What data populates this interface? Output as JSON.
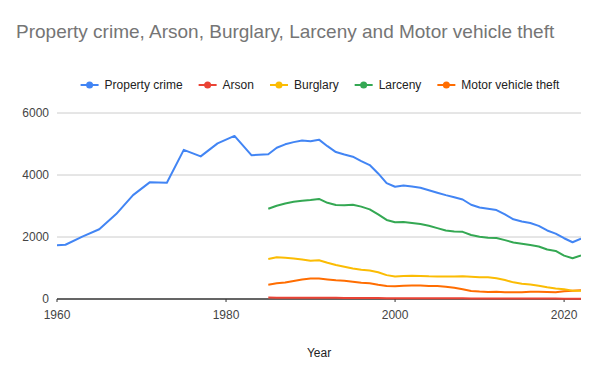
{
  "chart_data": {
    "type": "line",
    "title": "Property crime, Arson, Burglary, Larceny and Motor vehicle theft",
    "x_label": "Year",
    "x": [
      1960,
      1961,
      1963,
      1965,
      1967,
      1969,
      1971,
      1973,
      1975,
      1977,
      1979,
      1981,
      1983,
      1985,
      1986,
      1987,
      1988,
      1989,
      1990,
      1991,
      1992,
      1993,
      1994,
      1995,
      1996,
      1997,
      1998,
      1999,
      2000,
      2001,
      2002,
      2003,
      2004,
      2005,
      2006,
      2007,
      2008,
      2009,
      2010,
      2011,
      2012,
      2013,
      2014,
      2015,
      2016,
      2017,
      2018,
      2019,
      2020,
      2021,
      2022
    ],
    "series": [
      {
        "name": "Property crime",
        "color": "#4285f4",
        "values": [
          1730,
          1750,
          2010,
          2250,
          2740,
          3350,
          3770,
          3750,
          4810,
          4600,
          5020,
          5260,
          4640,
          4670,
          4880,
          4990,
          5060,
          5110,
          5090,
          5140,
          4930,
          4740,
          4660,
          4590,
          4450,
          4320,
          4050,
          3740,
          3620,
          3660,
          3630,
          3590,
          3510,
          3430,
          3350,
          3280,
          3210,
          3040,
          2950,
          2910,
          2870,
          2730,
          2570,
          2500,
          2450,
          2360,
          2210,
          2110,
          1960,
          1830,
          1950
        ]
      },
      {
        "name": "Arson",
        "color": "#ea4335",
        "values": [
          null,
          null,
          null,
          null,
          null,
          null,
          null,
          null,
          null,
          null,
          null,
          null,
          null,
          45,
          44,
          43,
          42,
          42,
          42,
          41,
          40,
          38,
          36,
          34,
          32,
          30,
          30,
          28,
          28,
          27,
          26,
          25,
          25,
          24,
          23,
          22,
          21,
          20,
          19,
          19,
          18,
          17,
          16,
          15,
          15,
          14,
          13,
          13,
          12,
          12,
          12
        ]
      },
      {
        "name": "Burglary",
        "color": "#fbbc04",
        "values": [
          null,
          null,
          null,
          null,
          null,
          null,
          null,
          null,
          null,
          null,
          null,
          null,
          null,
          1287,
          1345,
          1330,
          1309,
          1276,
          1232,
          1252,
          1168,
          1099,
          1042,
          987,
          945,
          919,
          863,
          770,
          729,
          741,
          747,
          741,
          730,
          727,
          729,
          723,
          730,
          717,
          701,
          702,
          672,
          610,
          537,
          495,
          469,
          429,
          376,
          341,
          314,
          270,
          270
        ]
      },
      {
        "name": "Larceny",
        "color": "#34a853",
        "values": [
          null,
          null,
          null,
          null,
          null,
          null,
          null,
          null,
          null,
          null,
          null,
          null,
          null,
          2911,
          3010,
          3081,
          3135,
          3171,
          3195,
          3229,
          3103,
          3033,
          3026,
          3043,
          2980,
          2892,
          2729,
          2550,
          2477,
          2485,
          2450,
          2416,
          2362,
          2287,
          2207,
          2178,
          2166,
          2064,
          2005,
          1974,
          1965,
          1899,
          1822,
          1783,
          1745,
          1695,
          1595,
          1550,
          1398,
          1314,
          1401
        ]
      },
      {
        "name": "Motor vehicle theft",
        "color": "#ff6d01",
        "values": [
          null,
          null,
          null,
          null,
          null,
          null,
          null,
          null,
          null,
          null,
          null,
          null,
          null,
          462,
          508,
          530,
          583,
          630,
          658,
          659,
          632,
          606,
          591,
          560,
          526,
          505,
          459,
          422,
          412,
          431,
          432,
          433,
          421,
          417,
          398,
          364,
          314,
          259,
          239,
          229,
          230,
          221,
          215,
          221,
          237,
          237,
          229,
          220,
          246,
          270,
          283
        ]
      }
    ],
    "xlim": [
      1960,
      2022
    ],
    "xticks": [
      1960,
      1980,
      2000,
      2020
    ],
    "ylim": [
      0,
      6000
    ],
    "yticks": [
      0,
      2000,
      4000,
      6000
    ],
    "grid": true,
    "legend": "top"
  }
}
